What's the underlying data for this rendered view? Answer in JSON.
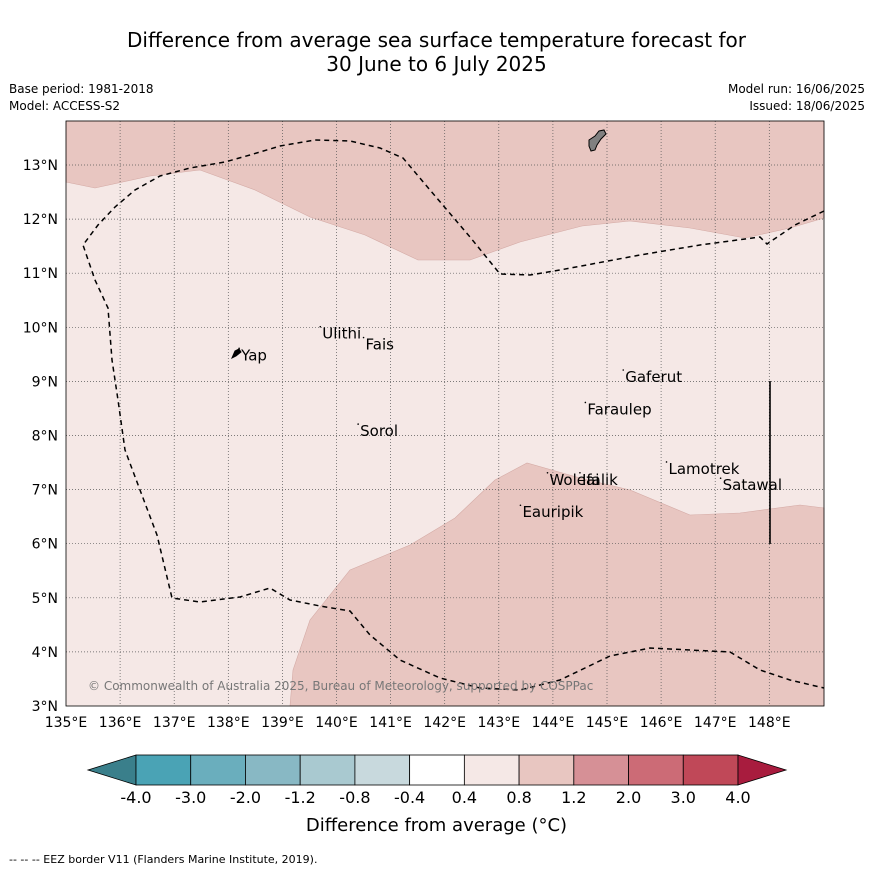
{
  "header": {
    "title_line1": "Difference from average sea surface temperature forecast for",
    "title_line2": "30 June to 6 July 2025",
    "base_period": "Base period: 1981-2018",
    "model": "Model: ACCESS-S2",
    "model_run": "Model run: 16/06/2025",
    "issued": "Issued: 18/06/2025"
  },
  "map": {
    "lon_ticks": [
      "135°E",
      "136°E",
      "137°E",
      "138°E",
      "139°E",
      "140°E",
      "141°E",
      "142°E",
      "143°E",
      "144°E",
      "145°E",
      "146°E",
      "147°E",
      "148°E"
    ],
    "lat_ticks": [
      "3°N",
      "4°N",
      "5°N",
      "6°N",
      "7°N",
      "8°N",
      "9°N",
      "10°N",
      "11°N",
      "12°N",
      "13°N"
    ],
    "places": [
      {
        "name": "Yap",
        "lon": 138.2,
        "lat": 9.5
      },
      {
        "name": "Ulithi",
        "lon": 139.7,
        "lat": 9.9
      },
      {
        "name": "Fais",
        "lon": 140.5,
        "lat": 9.7
      },
      {
        "name": "Sorol",
        "lon": 140.4,
        "lat": 8.1
      },
      {
        "name": "Gaferut",
        "lon": 145.3,
        "lat": 9.1
      },
      {
        "name": "Faraulep",
        "lon": 144.6,
        "lat": 8.5
      },
      {
        "name": "Lamotrek",
        "lon": 146.1,
        "lat": 7.4
      },
      {
        "name": "Satawal",
        "lon": 147.1,
        "lat": 7.1
      },
      {
        "name": "Woleai",
        "lon": 143.9,
        "lat": 7.2
      },
      {
        "name": "Ifalik",
        "lon": 144.5,
        "lat": 7.2
      },
      {
        "name": "Eauripik",
        "lon": 143.4,
        "lat": 6.6
      }
    ],
    "copyright": "© Commonwealth of Australia 2025, Bureau of Meteorology, supported by COSPPac"
  },
  "colorbar": {
    "labels": [
      "-4.0",
      "-3.0",
      "-2.0",
      "-1.2",
      "-0.8",
      "-0.4",
      "0.4",
      "0.8",
      "1.2",
      "2.0",
      "3.0",
      "4.0"
    ],
    "colors": [
      "#3a7f8b",
      "#4aa3b5",
      "#6aaebd",
      "#88b8c4",
      "#a9c9d0",
      "#c8d9dd",
      "#ffffff",
      "#f5e8e6",
      "#e8c6c1",
      "#d69096",
      "#cc6b76",
      "#c04858",
      "#a81c3e"
    ],
    "title": "Difference from average (°C)"
  },
  "legend": {
    "eez_note": "-- -- -- EEZ border V11 (Flanders Marine Institute, 2019)."
  }
}
